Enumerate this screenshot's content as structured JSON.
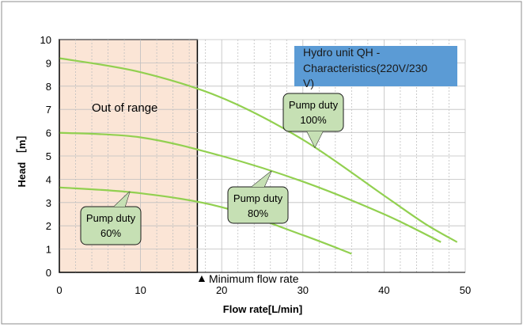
{
  "chart_data": {
    "type": "line",
    "title": "Hydro unit  QH -Characteristics(220V/230V)",
    "title_lines": [
      "Hydro unit  QH -",
      "Characteristics(220V/230",
      "V)"
    ],
    "xlabel": "Flow rate[L/min]",
    "ylabel": "Head ［m］",
    "xlim": [
      0,
      50
    ],
    "ylim": [
      0,
      10
    ],
    "x_ticks": [
      "0",
      "10",
      "20",
      "30",
      "40",
      "50"
    ],
    "y_ticks": [
      "0",
      "1",
      "2",
      "3",
      "4",
      "5",
      "6",
      "7",
      "8",
      "9",
      "10"
    ],
    "grid": true,
    "out_of_range": {
      "label": "Out of range",
      "x": [
        0,
        17
      ]
    },
    "min_flow": {
      "x": 17,
      "symbol": "▲",
      "label": "Minimum flow rate"
    },
    "series": [
      {
        "name": "Pump duty 100%",
        "callout": [
          "Pump duty",
          "100%"
        ],
        "x": [
          0,
          10,
          20,
          30,
          40,
          45,
          49
        ],
        "y": [
          9.2,
          8.6,
          7.5,
          5.7,
          3.3,
          2.1,
          1.3
        ]
      },
      {
        "name": "Pump duty 80%",
        "callout": [
          "Pump duty",
          "80%"
        ],
        "x": [
          0,
          10,
          20,
          30,
          40,
          47
        ],
        "y": [
          6.0,
          5.8,
          5.0,
          3.9,
          2.5,
          1.3
        ]
      },
      {
        "name": "Pump duty 60%",
        "callout": [
          "Pump duty",
          "60%"
        ],
        "x": [
          0,
          10,
          20,
          30,
          36
        ],
        "y": [
          3.65,
          3.4,
          2.8,
          1.6,
          0.8
        ]
      }
    ],
    "colors": {
      "curve": "#92d050",
      "callout_fill": "#c6e0b4",
      "callout_stroke": "#1a1a1a",
      "title_box": "#5b9bd5",
      "out_of_range_fill": "#fbe5d6",
      "grid": "#bfbfbf",
      "axis": "#000000"
    }
  }
}
